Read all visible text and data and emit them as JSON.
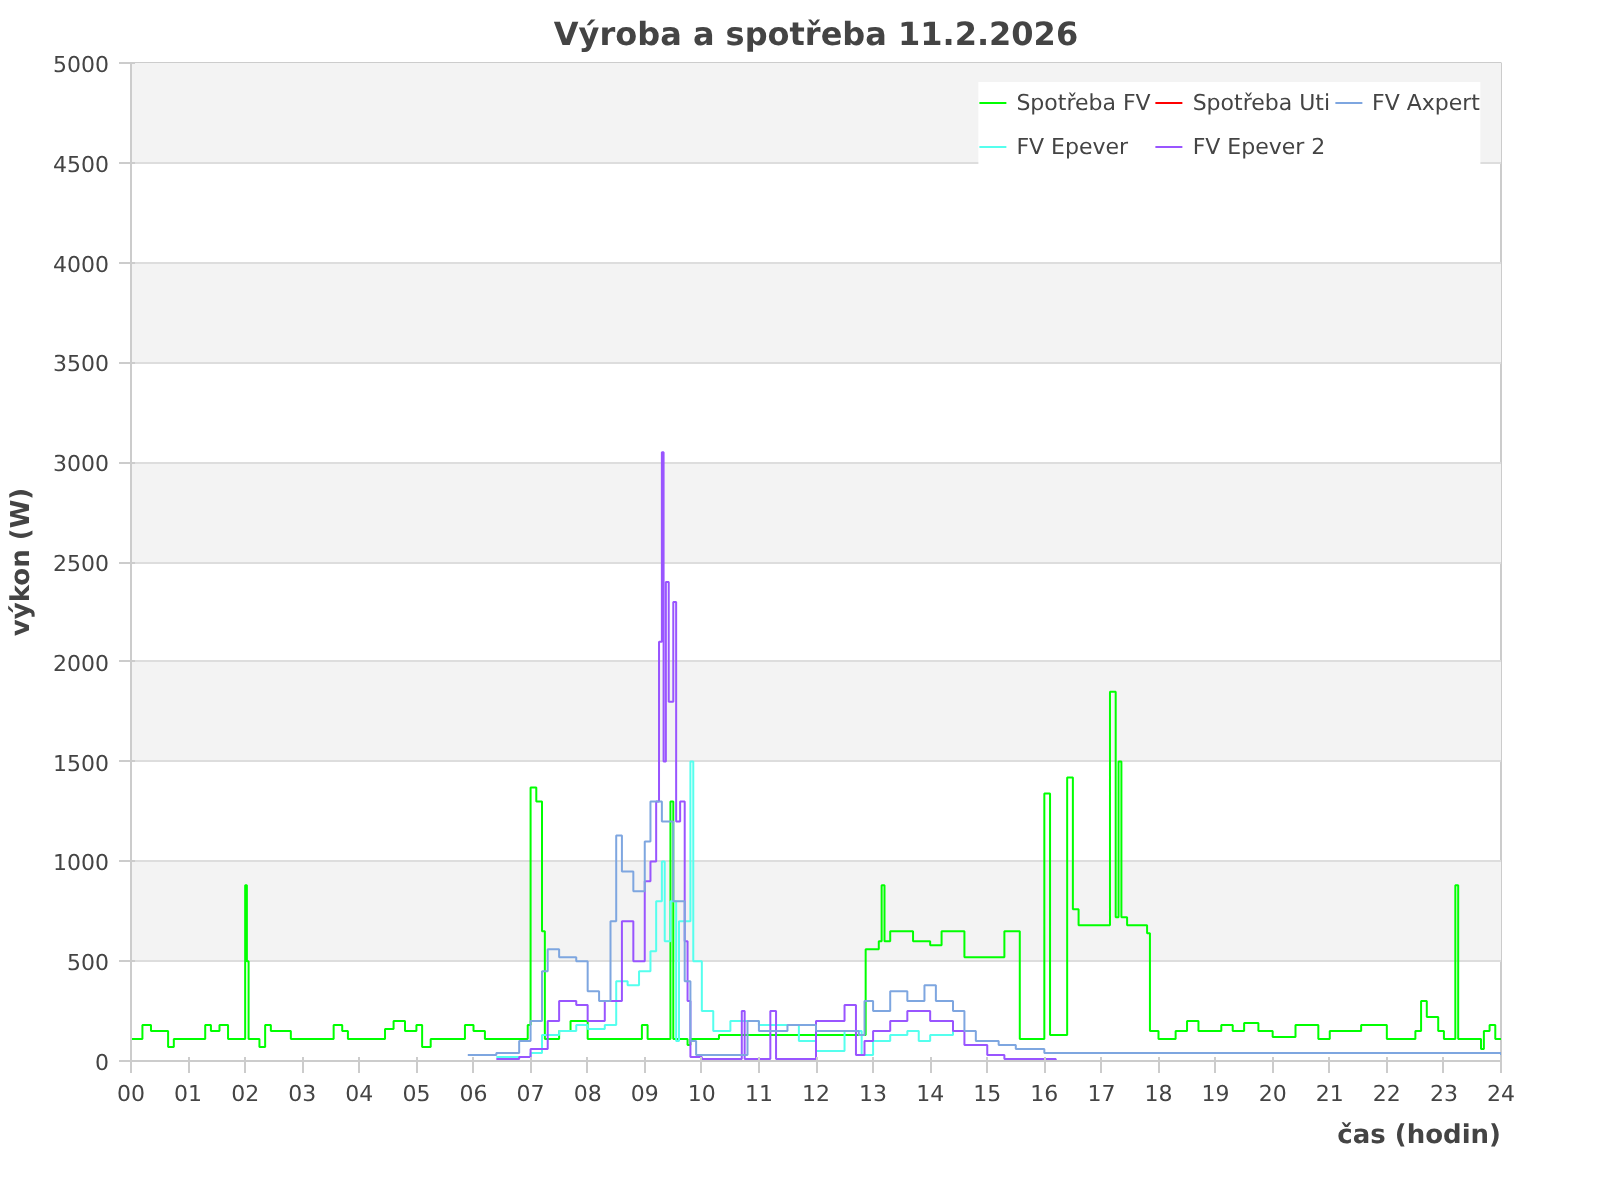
{
  "chart_data": {
    "type": "step",
    "title": "Výroba a spotřeba 11.2.2026",
    "xlabel": "čas (hodin)",
    "ylabel": "výkon (W)",
    "xlim": [
      0,
      24
    ],
    "ylim": [
      0,
      5000
    ],
    "xticks": [
      {
        "value": 0,
        "label": "00"
      },
      {
        "value": 1,
        "label": "01"
      },
      {
        "value": 2,
        "label": "02"
      },
      {
        "value": 3,
        "label": "03"
      },
      {
        "value": 4,
        "label": "04"
      },
      {
        "value": 5,
        "label": "05"
      },
      {
        "value": 6,
        "label": "06"
      },
      {
        "value": 7,
        "label": "07"
      },
      {
        "value": 8,
        "label": "08"
      },
      {
        "value": 9,
        "label": "09"
      },
      10,
      11,
      12,
      13,
      14,
      15,
      16,
      17,
      18,
      19,
      20,
      21,
      22,
      23,
      24
    ],
    "yticks": [
      0,
      500,
      1000,
      1500,
      2000,
      2500,
      3000,
      3500,
      4000,
      4500,
      5000
    ],
    "grid": "y",
    "legend": "top right",
    "line_style": "solid",
    "marker": "none",
    "series": [
      {
        "name": "Spotřeba FV",
        "color": "#00ff00",
        "x": [
          0,
          0.2,
          0.35,
          0.6,
          0.65,
          0.75,
          1.25,
          1.3,
          1.4,
          1.55,
          1.7,
          1.98,
          2.0,
          2.03,
          2.06,
          2.25,
          2.35,
          2.45,
          2.7,
          2.8,
          3.5,
          3.55,
          3.7,
          3.8,
          4.45,
          4.6,
          4.8,
          5.0,
          5.1,
          5.25,
          5.8,
          5.85,
          6.0,
          6.2,
          6.9,
          6.95,
          7.0,
          7.1,
          7.2,
          7.25,
          7.5,
          7.7,
          8.0,
          8.9,
          8.95,
          9.05,
          9.4,
          9.45,
          9.5,
          9.75,
          9.8,
          10.3,
          11.0,
          12.0,
          12.87,
          13.1,
          13.15,
          13.2,
          13.3,
          13.6,
          13.7,
          14.0,
          14.2,
          14.5,
          14.6,
          15.2,
          15.3,
          15.57,
          16.0,
          16.1,
          16.4,
          16.5,
          16.6,
          17.15,
          17.25,
          17.3,
          17.35,
          17.45,
          17.8,
          17.85,
          18.0,
          18.25,
          18.3,
          18.5,
          18.7,
          19.1,
          19.3,
          19.5,
          19.75,
          20.0,
          20.4,
          20.7,
          20.8,
          21.0,
          21.55,
          21.9,
          22.0,
          22.5,
          22.6,
          22.7,
          22.9,
          23.0,
          23.15,
          23.2,
          23.25,
          23.6,
          23.65,
          23.7,
          23.8,
          23.9,
          24
        ],
        "values": [
          110,
          180,
          150,
          150,
          70,
          110,
          110,
          180,
          150,
          180,
          110,
          110,
          880,
          500,
          110,
          70,
          180,
          150,
          150,
          110,
          110,
          180,
          150,
          110,
          160,
          200,
          150,
          180,
          70,
          110,
          110,
          180,
          150,
          110,
          110,
          180,
          1370,
          1300,
          650,
          110,
          150,
          200,
          110,
          110,
          180,
          110,
          110,
          1300,
          110,
          80,
          110,
          130,
          130,
          130,
          560,
          600,
          880,
          600,
          650,
          650,
          600,
          580,
          650,
          650,
          520,
          520,
          650,
          110,
          1340,
          130,
          1420,
          760,
          680,
          1850,
          720,
          1500,
          720,
          680,
          640,
          150,
          110,
          110,
          150,
          200,
          150,
          180,
          150,
          190,
          150,
          120,
          180,
          180,
          110,
          150,
          180,
          180,
          110,
          150,
          300,
          220,
          150,
          110,
          110,
          880,
          110,
          110,
          60,
          150,
          180,
          110,
          110
        ]
      },
      {
        "name": "FV Epever",
        "color": "#55ffee",
        "x": [
          6.4,
          7.0,
          7.2,
          7.5,
          7.8,
          8.0,
          8.3,
          8.5,
          8.7,
          8.9,
          9.1,
          9.2,
          9.3,
          9.35,
          9.45,
          9.55,
          9.6,
          9.8,
          9.85,
          9.9,
          10.0,
          10.2,
          10.5,
          10.8,
          11.0,
          11.5,
          11.7,
          12.0,
          12.5,
          12.8,
          13.0,
          13.3,
          13.6,
          13.8,
          14.0,
          14.4
        ],
        "values": [
          20,
          40,
          130,
          150,
          180,
          160,
          180,
          400,
          380,
          450,
          550,
          800,
          1000,
          600,
          800,
          100,
          700,
          1500,
          500,
          500,
          250,
          150,
          200,
          200,
          180,
          180,
          100,
          50,
          150,
          30,
          100,
          130,
          150,
          100,
          130,
          150
        ]
      },
      {
        "name": "Spotřeba Uti",
        "color": "#ff0000"
      },
      {
        "name": "FV Epever 2",
        "color": "#9955ff",
        "x": [
          6.4,
          6.8,
          7.0,
          7.3,
          7.5,
          7.8,
          8.0,
          8.3,
          8.6,
          8.8,
          9.0,
          9.1,
          9.2,
          9.25,
          9.3,
          9.33,
          9.37,
          9.42,
          9.5,
          9.55,
          9.62,
          9.7,
          9.75,
          9.8,
          10.0,
          10.7,
          10.75,
          11.2,
          11.3,
          12.0,
          12.5,
          12.7,
          12.85,
          13.0,
          13.3,
          13.6,
          14.0,
          14.4,
          14.6,
          15.0,
          15.3,
          16.2
        ],
        "values": [
          10,
          20,
          60,
          200,
          300,
          280,
          200,
          300,
          700,
          500,
          900,
          1000,
          1300,
          2100,
          3050,
          1500,
          2400,
          1800,
          2300,
          1200,
          1300,
          600,
          300,
          20,
          10,
          250,
          10,
          250,
          10,
          200,
          280,
          30,
          100,
          150,
          200,
          250,
          200,
          150,
          80,
          30,
          10,
          0
        ]
      },
      {
        "name": "FV Axpert",
        "color": "#7ea6e0",
        "x": [
          5.9,
          6.4,
          6.8,
          7.0,
          7.2,
          7.3,
          7.5,
          7.8,
          8.0,
          8.2,
          8.4,
          8.5,
          8.6,
          8.8,
          9.0,
          9.1,
          9.3,
          9.5,
          9.7,
          9.8,
          9.9,
          10.5,
          10.8,
          11.0,
          11.5,
          12.0,
          12.5,
          12.75,
          12.85,
          13.0,
          13.3,
          13.6,
          13.9,
          14.1,
          14.4,
          14.6,
          14.8,
          15.2,
          15.5,
          16.0,
          24.0
        ],
        "values": [
          30,
          40,
          100,
          200,
          450,
          560,
          520,
          500,
          350,
          300,
          700,
          1130,
          950,
          850,
          1100,
          1300,
          1200,
          800,
          400,
          100,
          30,
          30,
          200,
          150,
          180,
          150,
          150,
          130,
          300,
          250,
          350,
          300,
          380,
          300,
          250,
          150,
          100,
          80,
          60,
          40,
          30
        ]
      }
    ]
  }
}
